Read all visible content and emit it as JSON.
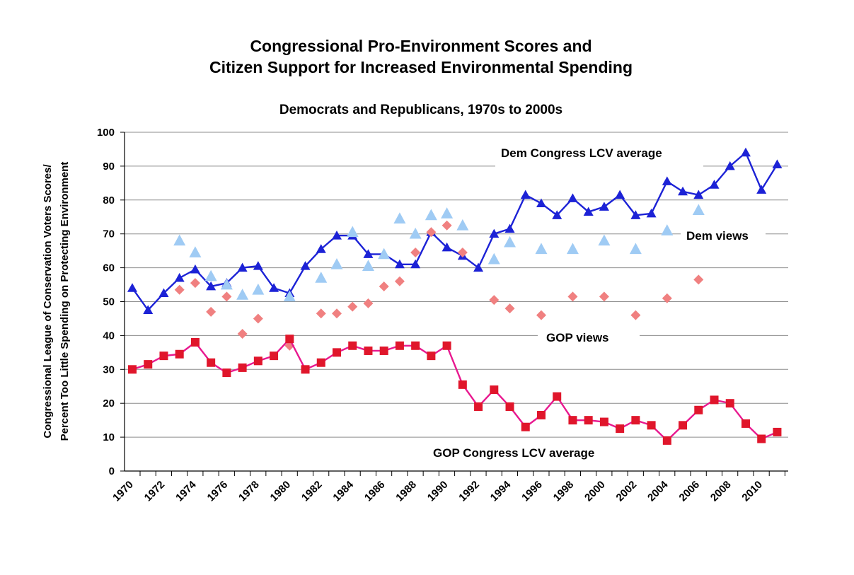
{
  "chart_data": {
    "type": "line",
    "title_lines": [
      "Congressional Pro-Environment Scores and",
      "Citizen Support for Increased Environmental Spending"
    ],
    "subtitle": "Democrats and Republicans, 1970s to 2000s",
    "ylabel_lines": [
      "Congressional League of Conservation Voters Scores/",
      "Percent Too Little Spending on Protecting Environment"
    ],
    "xlabel": "",
    "ylim": [
      0,
      100
    ],
    "xlim": [
      1970,
      2011.7
    ],
    "y_ticks": [
      "0",
      "10",
      "20",
      "30",
      "40",
      "50",
      "60",
      "70",
      "80",
      "90",
      "100"
    ],
    "x_ticks": [
      "1970",
      "1972",
      "1974",
      "1976",
      "1978",
      "1980",
      "1982",
      "1984",
      "1986",
      "1988",
      "1990",
      "1992",
      "1994",
      "1996",
      "1998",
      "2000",
      "2002",
      "2004",
      "2006",
      "2008",
      "2010"
    ],
    "grid": "horizontal",
    "annotations": {
      "dem_congress": "Dem Congress LCV average",
      "dem_views": "Dem views",
      "gop_views": "GOP views",
      "gop_congress": "GOP Congress LCV average"
    },
    "series": [
      {
        "key": "dem_congress",
        "style": "line-triangle",
        "color": "#1c22d6",
        "x": [
          1970,
          1971,
          1972,
          1973,
          1974,
          1975,
          1976,
          1977,
          1978,
          1979,
          1980,
          1981,
          1982,
          1983,
          1984,
          1985,
          1986,
          1987,
          1988,
          1989,
          1990,
          1991,
          1992,
          1993,
          1994,
          1995,
          1996,
          1997,
          1998,
          1999,
          2000,
          2001,
          2002,
          2003,
          2004,
          2005,
          2006,
          2007,
          2008,
          2009,
          2010,
          2011
        ],
        "y": [
          54,
          47.5,
          52.5,
          57,
          59.5,
          54.5,
          55.5,
          60,
          60.5,
          54,
          52.5,
          60.5,
          65.5,
          69.5,
          69.5,
          64,
          64,
          61,
          61,
          70.5,
          66,
          63.5,
          60,
          70,
          71.5,
          81.5,
          79,
          75.5,
          80.5,
          76.5,
          78,
          81.5,
          75.5,
          76,
          85.5,
          82.5,
          81.5,
          84.5,
          90,
          94,
          83,
          90.5
        ]
      },
      {
        "key": "dem_views",
        "style": "marker-triangle",
        "color": "#9fcbf4",
        "x": [
          1973,
          1974,
          1975,
          1976,
          1977,
          1978,
          1980,
          1982,
          1983,
          1984,
          1985,
          1986,
          1987,
          1988,
          1989,
          1990,
          1991,
          1993,
          1994,
          1996,
          1998,
          2000,
          2002,
          2004,
          2006
        ],
        "y": [
          68,
          64.5,
          57.5,
          55,
          52,
          53.5,
          51.5,
          57,
          61,
          70.5,
          60.5,
          64,
          74.5,
          70,
          75.5,
          76,
          72.5,
          62.5,
          67.5,
          65.5,
          65.5,
          68,
          65.5,
          71,
          77
        ]
      },
      {
        "key": "gop_views",
        "style": "marker-diamond",
        "color": "#f08080",
        "x": [
          1973,
          1974,
          1975,
          1976,
          1977,
          1978,
          1980,
          1982,
          1983,
          1984,
          1985,
          1986,
          1987,
          1988,
          1989,
          1990,
          1991,
          1993,
          1994,
          1996,
          1998,
          2000,
          2002,
          2004,
          2006
        ],
        "y": [
          53.5,
          55.5,
          47,
          51.5,
          40.5,
          45,
          37,
          46.5,
          46.5,
          48.5,
          49.5,
          54.5,
          56,
          64.5,
          70.5,
          72.5,
          64.5,
          50.5,
          48,
          46,
          51.5,
          51.5,
          46,
          51,
          56.5
        ]
      },
      {
        "key": "gop_congress",
        "style": "line-square",
        "color": "#e8188f",
        "marker_color": "#e0162b",
        "x": [
          1970,
          1971,
          1972,
          1973,
          1974,
          1975,
          1976,
          1977,
          1978,
          1979,
          1980,
          1981,
          1982,
          1983,
          1984,
          1985,
          1986,
          1987,
          1988,
          1989,
          1990,
          1991,
          1992,
          1993,
          1994,
          1995,
          1996,
          1997,
          1998,
          1999,
          2000,
          2001,
          2002,
          2003,
          2004,
          2005,
          2006,
          2007,
          2008,
          2009,
          2010,
          2011
        ],
        "y": [
          30,
          31.5,
          34,
          34.5,
          38,
          32,
          29,
          30.5,
          32.5,
          34,
          39,
          30,
          32,
          35,
          37,
          35.5,
          35.5,
          37,
          37,
          34,
          37,
          25.5,
          19,
          24,
          19,
          13,
          16.5,
          22,
          15,
          15,
          14.5,
          12.5,
          15,
          13.5,
          9,
          13.5,
          18,
          21,
          20,
          14,
          9.5,
          11.5
        ]
      }
    ]
  }
}
